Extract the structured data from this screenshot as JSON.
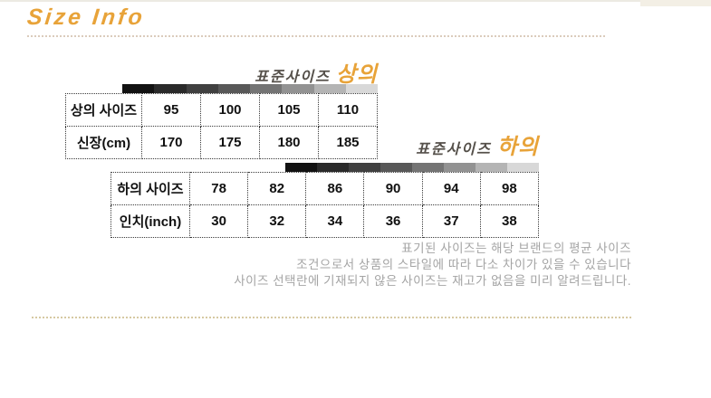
{
  "page": {
    "title": "Size Info"
  },
  "colors": {
    "accent_orange": "#e8a339",
    "header_plain_gray": "#55504a",
    "table_text": "#111111",
    "disclaimer_gray": "#a4a4a4",
    "title_dots": "#dbccbc",
    "bottom_dots": "#d6c9a2",
    "gradient_steps": [
      "#121212",
      "#2a2a2a",
      "#404040",
      "#585858",
      "#747474",
      "#929292",
      "#b4b4b4",
      "#d8d8d8"
    ]
  },
  "sections": [
    {
      "header_plain": "표준사이즈",
      "header_accent": "상의",
      "table": {
        "rows": [
          {
            "label": "상의 사이즈",
            "values": [
              "95",
              "100",
              "105",
              "110"
            ]
          },
          {
            "label": "신장(cm)",
            "values": [
              "170",
              "175",
              "180",
              "185"
            ]
          }
        ]
      }
    },
    {
      "header_plain": "표준사이즈",
      "header_accent": "하의",
      "table": {
        "rows": [
          {
            "label": "하의 사이즈",
            "values": [
              "78",
              "82",
              "86",
              "90",
              "94",
              "98"
            ]
          },
          {
            "label": "인치(inch)",
            "values": [
              "30",
              "32",
              "34",
              "36",
              "37",
              "38"
            ]
          }
        ]
      }
    }
  ],
  "disclaimer": {
    "lines": [
      "표기된 사이즈는 해당 브랜드의 평균 사이즈",
      "조건으로서 상품의 스타일에 따라 다소 차이가 있을 수 있습니다",
      "사이즈 선택란에 기재되지 않은 사이즈는 재고가 없음을 미리 알려드립니다."
    ]
  }
}
